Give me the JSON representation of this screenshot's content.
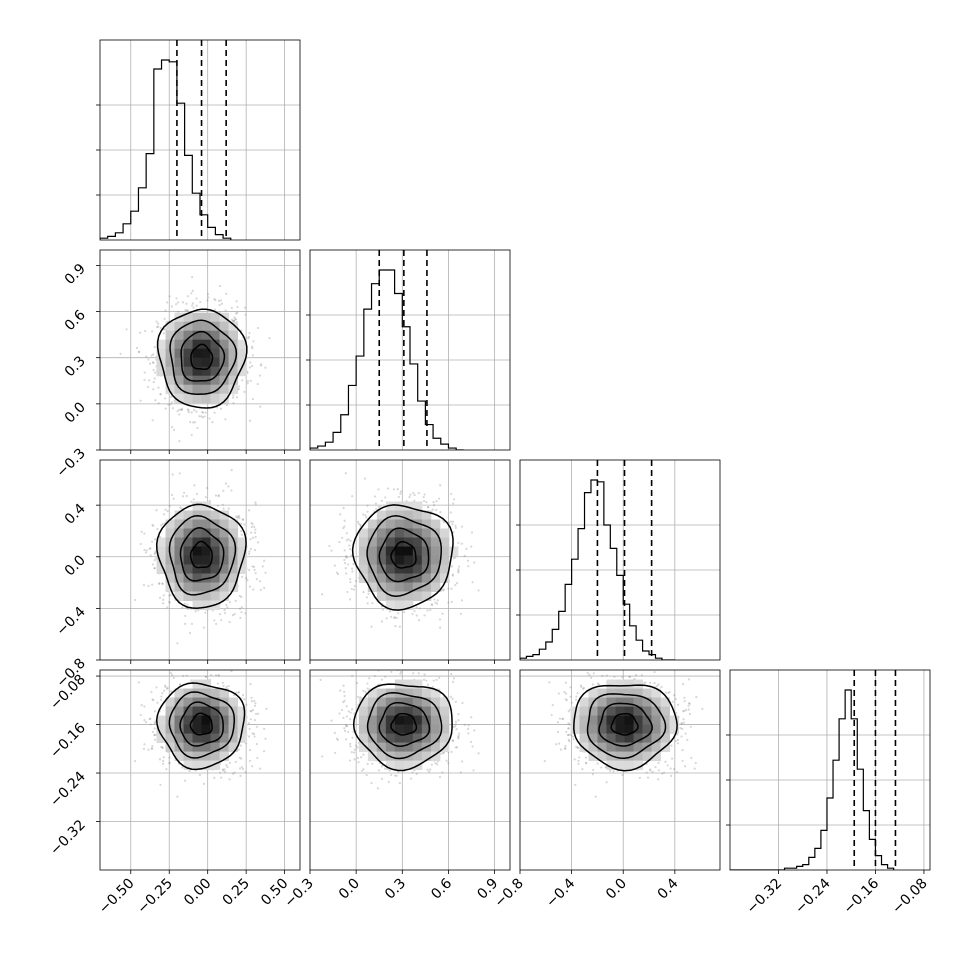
{
  "chart_data": {
    "type": "corner",
    "title": "",
    "parameters": [
      {
        "range": [
          -0.7,
          0.6
        ],
        "ticks": [
          -0.5,
          -0.25,
          0.0,
          0.25,
          0.5
        ],
        "tick_labels": [
          "−0.50",
          "−0.25",
          "0.00",
          "0.25",
          "0.50"
        ],
        "quantiles": [
          -0.2,
          -0.04,
          0.12
        ],
        "histogram": {
          "bin_width": 0.05,
          "counts": [
            1,
            2,
            4,
            9,
            16,
            29,
            48,
            95,
            100,
            99,
            76,
            47,
            26,
            14,
            7,
            3,
            1
          ]
        }
      },
      {
        "range": [
          -0.3,
          1.0
        ],
        "ticks": [
          -0.3,
          0.0,
          0.3,
          0.6,
          0.9
        ],
        "tick_labels": [
          "−0.3",
          "0.0",
          "0.3",
          "0.6",
          "0.9"
        ],
        "quantiles": [
          0.15,
          0.31,
          0.46
        ],
        "histogram": {
          "bin_width": 0.05,
          "counts": [
            1,
            2,
            4,
            9,
            18,
            33,
            48,
            72,
            85,
            92,
            92,
            80,
            63,
            44,
            25,
            13,
            6,
            3,
            1,
            0
          ]
        }
      },
      {
        "range": [
          -0.8,
          0.75
        ],
        "ticks": [
          -0.8,
          -0.4,
          0.0,
          0.4
        ],
        "tick_labels": [
          "−0.8",
          "−0.4",
          "0.0",
          "0.4"
        ],
        "quantiles": [
          -0.2,
          0.01,
          0.22
        ],
        "histogram": {
          "bin_width": 0.05,
          "counts": [
            1,
            2,
            3,
            6,
            10,
            17,
            27,
            42,
            56,
            73,
            93,
            100,
            99,
            75,
            62,
            47,
            31,
            19,
            11,
            5,
            3,
            1,
            0,
            0
          ]
        }
      },
      {
        "range": [
          -0.4,
          -0.07
        ],
        "ticks": [
          -0.32,
          -0.24,
          -0.16,
          -0.08
        ],
        "tick_labels": [
          "−0.32",
          "−0.24",
          "−0.16",
          "−0.08"
        ],
        "quantiles": [
          -0.195,
          -0.16,
          -0.127
        ],
        "histogram": {
          "bin_width": 0.01,
          "counts": [
            0,
            0,
            0,
            0,
            0,
            0,
            0,
            0,
            0,
            1,
            1,
            2,
            3,
            7,
            12,
            22,
            40,
            61,
            84,
            100,
            84,
            56,
            33,
            17,
            8,
            3,
            1
          ]
        }
      }
    ],
    "joint": [
      {
        "row": 1,
        "col": 0,
        "mean": [
          -0.04,
          0.3
        ],
        "sd": [
          0.14,
          0.16
        ]
      },
      {
        "row": 2,
        "col": 0,
        "mean": [
          -0.04,
          0.01
        ],
        "sd": [
          0.14,
          0.2
        ]
      },
      {
        "row": 2,
        "col": 1,
        "mean": [
          0.31,
          0.01
        ],
        "sd": [
          0.16,
          0.2
        ]
      },
      {
        "row": 3,
        "col": 0,
        "mean": [
          -0.04,
          -0.16
        ],
        "sd": [
          0.14,
          0.035
        ]
      },
      {
        "row": 3,
        "col": 1,
        "mean": [
          0.31,
          -0.16
        ],
        "sd": [
          0.16,
          0.035
        ]
      },
      {
        "row": 3,
        "col": 2,
        "mean": [
          0.01,
          -0.16
        ],
        "sd": [
          0.2,
          0.035
        ]
      }
    ],
    "grid": true,
    "legend": "none",
    "colors": {
      "line": "#000000",
      "grid": "#b0b0b0",
      "points": "#8c8c8c"
    }
  }
}
